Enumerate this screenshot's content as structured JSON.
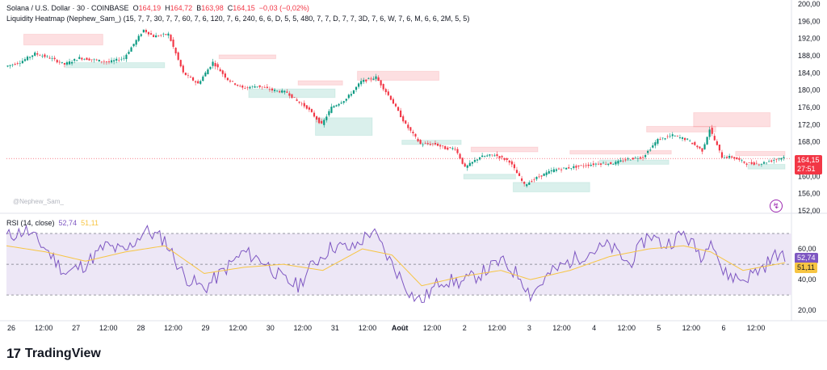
{
  "header": {
    "symbol": "Solana / U.S. Dollar · 30 · COINBASE",
    "o_label": "O",
    "o_value": "164,19",
    "h_label": "H",
    "h_value": "164,72",
    "b_label": "B",
    "b_value": "163,98",
    "c_label": "C",
    "c_value": "164,15",
    "change": "−0,03 (−0,02%)",
    "indicator": "Liquidity Heatmap (Nephew_Sam_) (15, 7, 7, 30, 7, 7, 60, 7, 6, 120, 7, 6, 240, 6, 6, D, 5, 5, 480, 7, 7, D, 7, 7, 3D, 7, 6, W, 7, 6, M, 6, 6, 2M, 5, 5)"
  },
  "credit": "@Nephew_Sam_",
  "rsi": {
    "label": "RSI (14, close)",
    "rsi_value": "52,74",
    "ma_value": "51,11"
  },
  "price_badge": {
    "price": "164,15",
    "timer": "27:51"
  },
  "rsi_badges": {
    "rsi": "52,74",
    "ma": "51,11"
  },
  "logo": {
    "mark": "17",
    "text": "TradingView"
  },
  "colors": {
    "up": "#089981",
    "down": "#f23645",
    "rsi_line": "#7e57c2",
    "rsi_ma": "#f7c543",
    "rsi_band": "#ede7f6"
  },
  "chart_data": [
    {
      "type": "candlestick",
      "y_ticks": [
        "200,00",
        "196,00",
        "192,00",
        "188,00",
        "184,00",
        "180,00",
        "176,00",
        "172,00",
        "168,00",
        "164,00",
        "160,00",
        "156,00",
        "152,00"
      ],
      "ylim": [
        152,
        200
      ],
      "x_ticks": [
        "26",
        "12:00",
        "27",
        "12:00",
        "28",
        "12:00",
        "29",
        "12:00",
        "30",
        "12:00",
        "31",
        "12:00",
        "Août",
        "12:00",
        "2",
        "12:00",
        "3",
        "12:00",
        "4",
        "12:00",
        "5",
        "12:00",
        "6",
        "12:00"
      ],
      "last_price": 164.15,
      "path": [
        [
          0,
          185.5
        ],
        [
          6,
          186.5
        ],
        [
          12,
          188.5
        ],
        [
          18,
          187.5
        ],
        [
          24,
          186
        ],
        [
          30,
          187.5
        ],
        [
          36,
          187
        ],
        [
          42,
          186.5
        ],
        [
          48,
          187.5
        ],
        [
          56,
          194
        ],
        [
          60,
          192.5
        ],
        [
          66,
          193
        ],
        [
          72,
          184
        ],
        [
          78,
          181.5
        ],
        [
          84,
          186.5
        ],
        [
          90,
          182.5
        ],
        [
          96,
          180.5
        ],
        [
          102,
          181
        ],
        [
          108,
          180
        ],
        [
          114,
          179.5
        ],
        [
          118,
          177.5
        ],
        [
          122,
          176
        ],
        [
          128,
          172
        ],
        [
          132,
          176
        ],
        [
          138,
          178
        ],
        [
          144,
          182
        ],
        [
          150,
          183
        ],
        [
          156,
          178
        ],
        [
          162,
          172
        ],
        [
          168,
          167.5
        ],
        [
          174,
          167.5
        ],
        [
          178,
          166.5
        ],
        [
          182,
          166.5
        ],
        [
          186,
          162
        ],
        [
          192,
          164.5
        ],
        [
          198,
          165
        ],
        [
          204,
          163.5
        ],
        [
          210,
          158
        ],
        [
          216,
          160
        ],
        [
          222,
          161.5
        ],
        [
          228,
          162
        ],
        [
          234,
          162.5
        ],
        [
          240,
          163
        ],
        [
          246,
          163
        ],
        [
          252,
          164
        ],
        [
          258,
          164.5
        ],
        [
          264,
          168.5
        ],
        [
          270,
          169.5
        ],
        [
          276,
          168.5
        ],
        [
          282,
          166
        ],
        [
          285,
          171
        ],
        [
          290,
          164.5
        ],
        [
          294,
          164.5
        ],
        [
          300,
          163
        ],
        [
          306,
          163
        ],
        [
          312,
          164
        ],
        [
          315,
          164.5
        ]
      ],
      "heat_zones": [
        {
          "kind": "sell",
          "price_top": 193.0,
          "price_bottom": 190.5,
          "t0": 7,
          "t1": 39
        },
        {
          "kind": "sell",
          "price_top": 188.2,
          "price_bottom": 187.3,
          "t0": 86,
          "t1": 109
        },
        {
          "kind": "sell",
          "price_top": 184.4,
          "price_bottom": 182.3,
          "t0": 142,
          "t1": 175
        },
        {
          "kind": "sell",
          "price_top": 182.2,
          "price_bottom": 181.2,
          "t0": 118,
          "t1": 136
        },
        {
          "kind": "sell",
          "price_top": 166.8,
          "price_bottom": 165.7,
          "t0": 188,
          "t1": 215
        },
        {
          "kind": "sell",
          "price_top": 166.0,
          "price_bottom": 165.2,
          "t0": 228,
          "t1": 269
        },
        {
          "kind": "sell",
          "price_top": 171.6,
          "price_bottom": 170.3,
          "t0": 259,
          "t1": 287
        },
        {
          "kind": "sell",
          "price_top": 174.8,
          "price_bottom": 171.5,
          "t0": 278,
          "t1": 309
        },
        {
          "kind": "sell",
          "price_top": 165.8,
          "price_bottom": 164.8,
          "t0": 295,
          "t1": 315
        },
        {
          "kind": "buy",
          "price_top": 186.4,
          "price_bottom": 185.2,
          "t0": 24,
          "t1": 64
        },
        {
          "kind": "buy",
          "price_top": 180.3,
          "price_bottom": 178.3,
          "t0": 98,
          "t1": 133
        },
        {
          "kind": "buy",
          "price_top": 173.6,
          "price_bottom": 169.5,
          "t0": 125,
          "t1": 148
        },
        {
          "kind": "buy",
          "price_top": 168.4,
          "price_bottom": 167.4,
          "t0": 160,
          "t1": 184
        },
        {
          "kind": "buy",
          "price_top": 160.5,
          "price_bottom": 159.4,
          "t0": 185,
          "t1": 206
        },
        {
          "kind": "buy",
          "price_top": 158.6,
          "price_bottom": 156.4,
          "t0": 205,
          "t1": 236
        },
        {
          "kind": "buy",
          "price_top": 163.8,
          "price_bottom": 162.8,
          "t0": 240,
          "t1": 268
        },
        {
          "kind": "buy",
          "price_top": 162.8,
          "price_bottom": 161.7,
          "t0": 300,
          "t1": 315
        }
      ]
    },
    {
      "type": "line",
      "title": "RSI (14, close)",
      "y_ticks": [
        "60,00",
        "40,00",
        "20,00"
      ],
      "ylim": [
        18,
        80
      ],
      "bands": [
        70,
        50,
        30
      ],
      "series": [
        {
          "name": "RSI",
          "path": [
            [
              0,
              68
            ],
            [
              8,
              72
            ],
            [
              16,
              60
            ],
            [
              24,
              44
            ],
            [
              32,
              50
            ],
            [
              40,
              62
            ],
            [
              48,
              58
            ],
            [
              56,
              72
            ],
            [
              64,
              66
            ],
            [
              72,
              42
            ],
            [
              80,
              34
            ],
            [
              88,
              46
            ],
            [
              96,
              58
            ],
            [
              104,
              52
            ],
            [
              112,
              40
            ],
            [
              118,
              36
            ],
            [
              124,
              50
            ],
            [
              132,
              62
            ],
            [
              140,
              60
            ],
            [
              148,
              72
            ],
            [
              156,
              50
            ],
            [
              164,
              30
            ],
            [
              168,
              26
            ],
            [
              176,
              40
            ],
            [
              184,
              38
            ],
            [
              192,
              44
            ],
            [
              200,
              52
            ],
            [
              208,
              42
            ],
            [
              212,
              30
            ],
            [
              220,
              44
            ],
            [
              228,
              52
            ],
            [
              236,
              58
            ],
            [
              244,
              62
            ],
            [
              252,
              50
            ],
            [
              260,
              70
            ],
            [
              266,
              62
            ],
            [
              274,
              70
            ],
            [
              282,
              54
            ],
            [
              285,
              70
            ],
            [
              290,
              44
            ],
            [
              298,
              40
            ],
            [
              306,
              48
            ],
            [
              312,
              57
            ],
            [
              315,
              53
            ]
          ]
        },
        {
          "name": "MA",
          "path": [
            [
              0,
              62
            ],
            [
              16,
              58
            ],
            [
              32,
              52
            ],
            [
              48,
              58
            ],
            [
              64,
              62
            ],
            [
              80,
              44
            ],
            [
              96,
              48
            ],
            [
              112,
              50
            ],
            [
              128,
              46
            ],
            [
              144,
              60
            ],
            [
              156,
              56
            ],
            [
              168,
              36
            ],
            [
              184,
              42
            ],
            [
              200,
              46
            ],
            [
              212,
              40
            ],
            [
              228,
              46
            ],
            [
              244,
              55
            ],
            [
              260,
              60
            ],
            [
              274,
              62
            ],
            [
              285,
              58
            ],
            [
              298,
              46
            ],
            [
              315,
              51
            ]
          ]
        }
      ]
    }
  ]
}
